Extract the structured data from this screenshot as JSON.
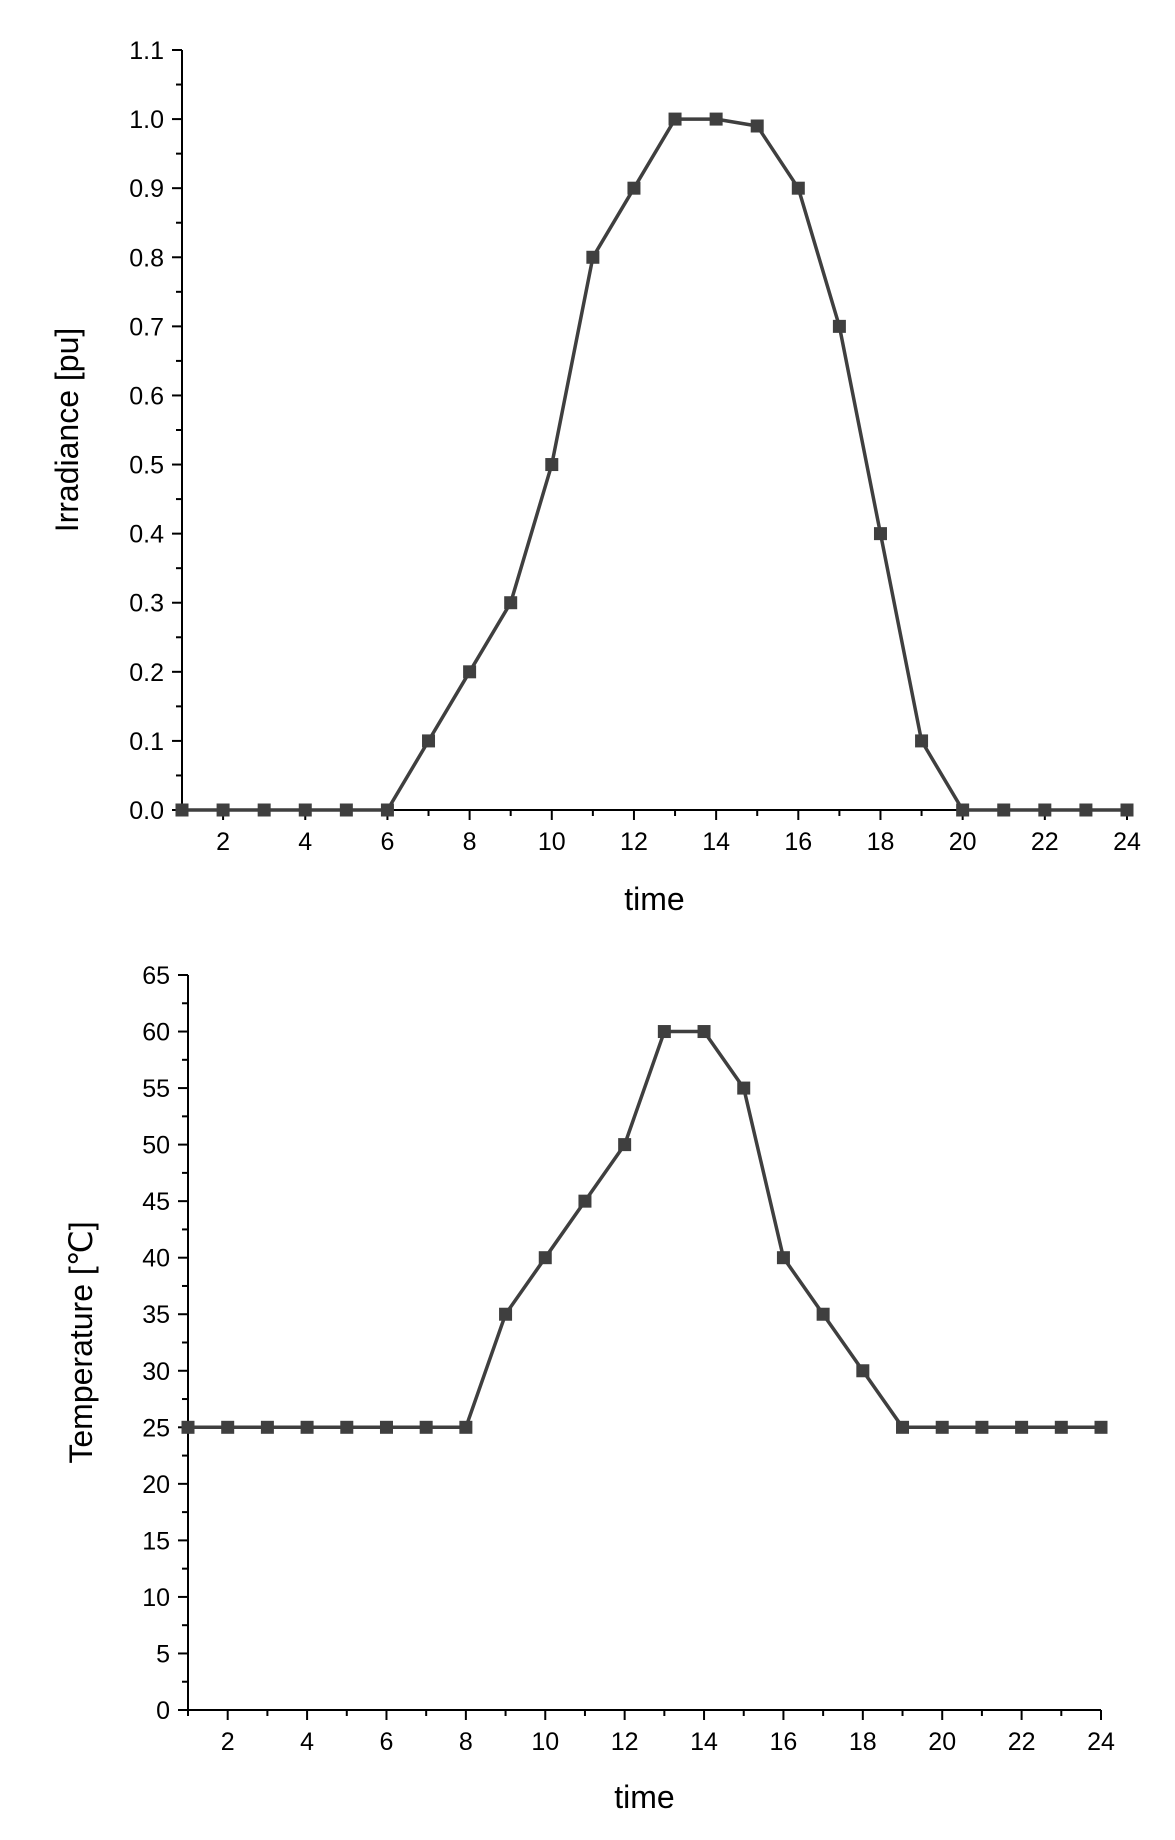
{
  "chart_data": [
    {
      "type": "line",
      "xlabel": "time",
      "ylabel": "Irradiance [pu]",
      "xlim": [
        1,
        24
      ],
      "ylim": [
        0,
        1.1
      ],
      "xticks": [
        2,
        4,
        6,
        8,
        10,
        12,
        14,
        16,
        18,
        20,
        22,
        24
      ],
      "yticks": [
        "0.0",
        "0.1",
        "0.2",
        "0.3",
        "0.4",
        "0.5",
        "0.6",
        "0.7",
        "0.8",
        "0.9",
        "1.0",
        "1.1"
      ],
      "grid": false,
      "marker": "square",
      "color": "#3f3f3f",
      "x": [
        1,
        2,
        3,
        4,
        5,
        6,
        7,
        8,
        9,
        10,
        11,
        12,
        13,
        14,
        15,
        16,
        17,
        18,
        19,
        20,
        21,
        22,
        23,
        24
      ],
      "series": [
        {
          "values": [
            0,
            0,
            0,
            0,
            0,
            0,
            0.1,
            0.2,
            0.3,
            0.5,
            0.8,
            0.9,
            1.0,
            1.0,
            0.99,
            0.9,
            0.7,
            0.4,
            0.1,
            0,
            0,
            0,
            0,
            0
          ]
        }
      ]
    },
    {
      "type": "line",
      "xlabel": "time",
      "ylabel": "Temperature [℃]",
      "xlim": [
        1,
        24
      ],
      "ylim": [
        0,
        65
      ],
      "xticks": [
        2,
        4,
        6,
        8,
        10,
        12,
        14,
        16,
        18,
        20,
        22,
        24
      ],
      "yticks": [
        "0",
        "5",
        "10",
        "15",
        "20",
        "25",
        "30",
        "35",
        "40",
        "45",
        "50",
        "55",
        "60",
        "65"
      ],
      "grid": false,
      "marker": "square",
      "color": "#3f3f3f",
      "x": [
        1,
        2,
        3,
        4,
        5,
        6,
        7,
        8,
        9,
        10,
        11,
        12,
        13,
        14,
        15,
        16,
        17,
        18,
        19,
        20,
        21,
        22,
        23,
        24
      ],
      "series": [
        {
          "values": [
            25,
            25,
            25,
            25,
            25,
            25,
            25,
            25,
            35,
            40,
            45,
            50,
            60,
            60,
            55,
            40,
            35,
            30,
            25,
            25,
            25,
            25,
            25,
            25
          ]
        }
      ]
    }
  ]
}
